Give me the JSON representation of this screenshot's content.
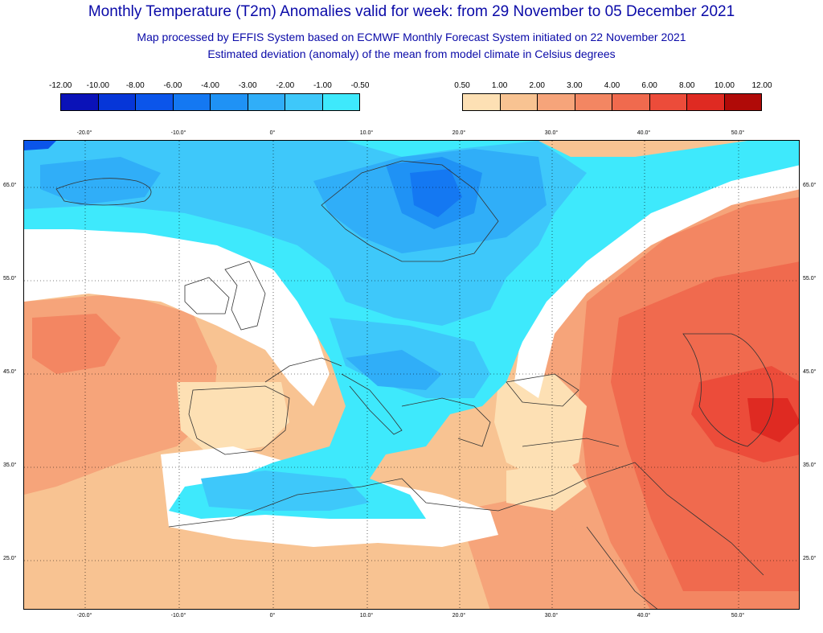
{
  "titles": {
    "main": "Monthly Temperature (T2m) Anomalies valid for week: from 29 November to 05 December 2021",
    "sub1": "Map processed by EFFIS System based on ECMWF Monthly Forecast System initiated on 22 November 2021",
    "sub2": "Estimated deviation (anomaly) of the mean from model climate in Celsius degrees"
  },
  "legend_cold": {
    "labels": [
      "-12.00",
      "-10.00",
      "-8.00",
      "-6.00",
      "-4.00",
      "-3.00",
      "-2.00",
      "-1.00",
      "-0.50"
    ],
    "colors": [
      "#0a12b8",
      "#0636d8",
      "#0b55ea",
      "#1478f2",
      "#1f92f5",
      "#30aef8",
      "#3ec8fa",
      "#3ee9fc"
    ]
  },
  "legend_warm": {
    "labels": [
      "0.50",
      "1.00",
      "2.00",
      "3.00",
      "4.00",
      "6.00",
      "8.00",
      "10.00",
      "12.00"
    ],
    "colors": [
      "#fde0b4",
      "#f8c392",
      "#f6a47a",
      "#f38662",
      "#f06a4e",
      "#ec4c3a",
      "#df2a22",
      "#b00a08"
    ]
  },
  "axes": {
    "lon_labels": [
      "-20.0°",
      "-10.0°",
      "0°",
      "10.0°",
      "20.0°",
      "30.0°",
      "40.0°",
      "50.0°"
    ],
    "lat_labels": [
      "65.0°",
      "55.0°",
      "45.0°",
      "35.0°",
      "25.0°"
    ]
  }
}
